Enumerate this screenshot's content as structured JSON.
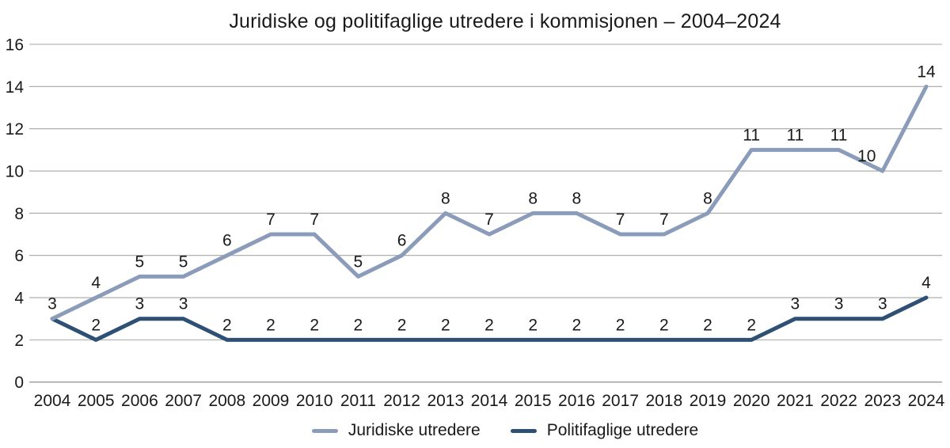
{
  "chart_data": {
    "type": "line",
    "title": "Juridiske og politifaglige utredere i kommisjonen – 2004–2024",
    "categories": [
      "2004",
      "2005",
      "2006",
      "2007",
      "2008",
      "2009",
      "2010",
      "2011",
      "2012",
      "2013",
      "2014",
      "2015",
      "2016",
      "2017",
      "2018",
      "2019",
      "2020",
      "2021",
      "2022",
      "2023",
      "2024"
    ],
    "series": [
      {
        "name": "Juridiske utredere",
        "color": "#8A9CBA",
        "values": [
          3,
          4,
          5,
          5,
          6,
          7,
          7,
          5,
          6,
          8,
          7,
          8,
          8,
          7,
          7,
          8,
          11,
          11,
          11,
          10,
          14
        ],
        "labels": [
          "3",
          "4",
          "5",
          "5",
          "6",
          "7",
          "7",
          "5",
          "6",
          "8",
          "7",
          "8",
          "8",
          "7",
          "7",
          "8",
          "11",
          "11",
          "11",
          "10",
          "14"
        ],
        "label_dx": {
          "19": -20
        }
      },
      {
        "name": "Politifaglige utredere",
        "color": "#2E5074",
        "values": [
          3,
          2,
          3,
          3,
          2,
          2,
          2,
          2,
          2,
          2,
          2,
          2,
          2,
          2,
          2,
          2,
          2,
          3,
          3,
          3,
          4
        ],
        "labels": [
          "",
          "2",
          "3",
          "3",
          "2",
          "2",
          "2",
          "2",
          "2",
          "2",
          "2",
          "2",
          "2",
          "2",
          "2",
          "2",
          "2",
          "3",
          "3",
          "3",
          "4"
        ],
        "label_dx": {}
      }
    ],
    "yticks": [
      0,
      2,
      4,
      6,
      8,
      10,
      12,
      14,
      16
    ],
    "ylim": [
      0,
      16
    ],
    "grid": "horizontal",
    "legend_position": "bottom",
    "colors": {
      "grid": "#A6A6A6",
      "text": "#1A1A1A",
      "background": "#FFFFFF"
    }
  }
}
